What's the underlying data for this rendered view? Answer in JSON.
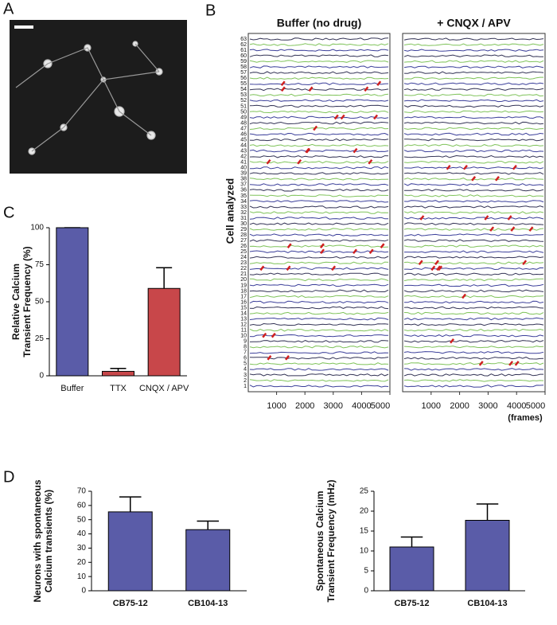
{
  "panel_labels": [
    "A",
    "B",
    "C",
    "D"
  ],
  "chart_data": [
    {
      "type": "bar",
      "ylabel": [
        "Relative Calcium",
        "Transient Frequency (%)"
      ],
      "categories": [
        "Buffer",
        "TTX",
        "CNQX / APV"
      ],
      "values": [
        100,
        3,
        59
      ],
      "errors": [
        0,
        2,
        14
      ],
      "colors": [
        "#5a5ca8",
        "#c8474a",
        "#c8474a"
      ],
      "ylim": [
        0,
        100
      ],
      "yticks": [
        0,
        25,
        50,
        75,
        100
      ]
    },
    {
      "type": "bar",
      "ylabel": [
        "Neurons with spontaneous",
        "Calcium transients (%)"
      ],
      "categories": [
        "CB75-12",
        "CB104-13"
      ],
      "values": [
        55.5,
        43
      ],
      "errors": [
        10.5,
        6
      ],
      "colors": [
        "#5a5ca8",
        "#5a5ca8"
      ],
      "ylim": [
        0,
        70
      ],
      "yticks": [
        0,
        10,
        20,
        30,
        40,
        50,
        60,
        70
      ]
    },
    {
      "type": "bar",
      "ylabel": [
        "Spontaneous Calcium",
        "Transient Frequency  (mHz)"
      ],
      "categories": [
        "CB75-12",
        "CB104-13"
      ],
      "values": [
        11,
        17.7
      ],
      "errors": [
        2.5,
        4.1
      ],
      "colors": [
        "#5a5ca8",
        "#5a5ca8"
      ],
      "ylim": [
        0,
        25
      ],
      "yticks": [
        0,
        5,
        10,
        15,
        20,
        25
      ]
    },
    {
      "type": "traces",
      "panel_titles": [
        "Buffer (no drug)",
        "+ CNQX / APV"
      ],
      "ylabel": "Cell analyzed",
      "xlabel": "(frames)",
      "xlim": [
        0,
        5000
      ],
      "xticks": [
        1000,
        2000,
        3000,
        4000,
        5000
      ],
      "ylim": [
        0,
        64
      ],
      "yticks": [
        1,
        2,
        3,
        4,
        5,
        6,
        7,
        8,
        9,
        10,
        11,
        12,
        13,
        14,
        15,
        16,
        17,
        18,
        19,
        20,
        21,
        22,
        23,
        24,
        25,
        26,
        27,
        28,
        29,
        30,
        31,
        32,
        33,
        34,
        35,
        36,
        37,
        38,
        39,
        40,
        41,
        42,
        43,
        44,
        45,
        46,
        47,
        48,
        49,
        50,
        51,
        52,
        53,
        54,
        55,
        56,
        57,
        58,
        59,
        60,
        61,
        62,
        63
      ]
    }
  ]
}
